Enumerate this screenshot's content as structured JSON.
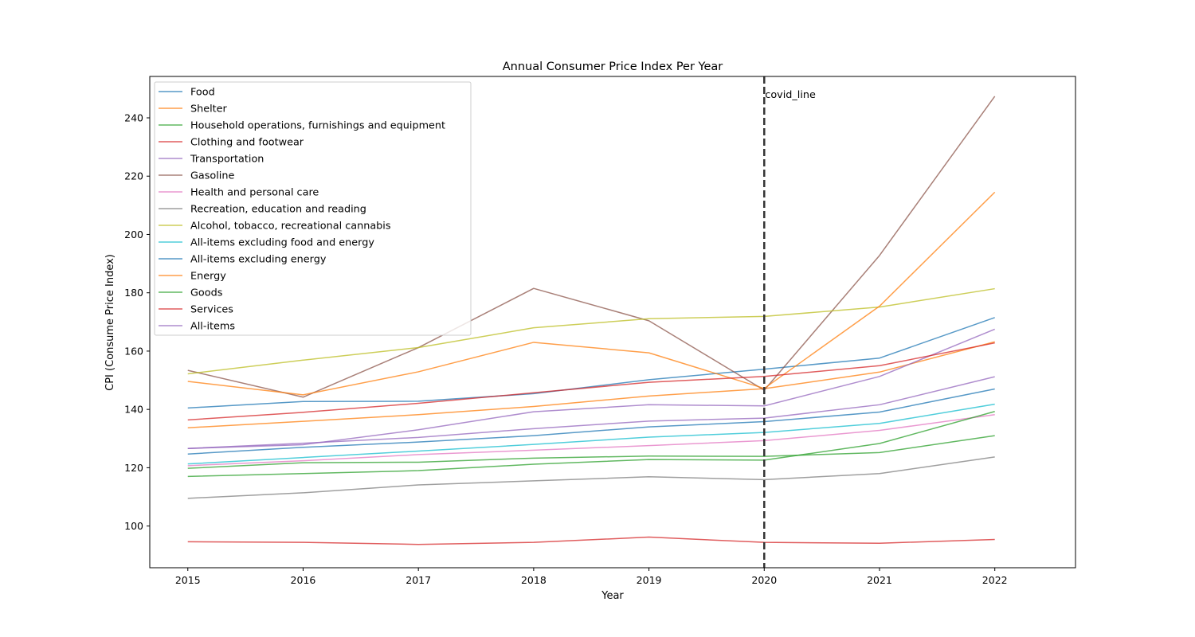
{
  "chart_data": {
    "type": "line",
    "title": "Annual Consumer Price Index Per Year",
    "xlabel": "Year",
    "ylabel": "CPI (Consume Price Index)",
    "x": [
      "2015",
      "2016",
      "2017",
      "2018",
      "2019",
      "2020",
      "2021",
      "2022"
    ],
    "xlim": [
      2014.67,
      2022.7
    ],
    "ylim": [
      85.7,
      254.2
    ],
    "yticks": [
      "100",
      "120",
      "140",
      "160",
      "180",
      "200",
      "220",
      "240"
    ],
    "grid": false,
    "legend_position": "upper left",
    "series": [
      {
        "name": "Food",
        "color": "#1f77b4",
        "values": [
          140.5,
          142.7,
          142.8,
          145.4,
          150.2,
          153.8,
          157.6,
          171.5
        ]
      },
      {
        "name": "Shelter",
        "color": "#ff7f0e",
        "values": [
          133.7,
          135.9,
          138.2,
          141.0,
          144.6,
          147.1,
          152.8,
          163.2
        ]
      },
      {
        "name": "Household operations, furnishings and equipment",
        "color": "#2ca02c",
        "values": [
          119.8,
          121.7,
          121.9,
          123.3,
          124.0,
          123.9,
          125.2,
          131.0
        ]
      },
      {
        "name": "Clothing and footwear",
        "color": "#d62728",
        "values": [
          94.6,
          94.4,
          93.7,
          94.4,
          96.2,
          94.4,
          94.1,
          95.4
        ]
      },
      {
        "name": "Transportation",
        "color": "#9467bd",
        "values": [
          126.6,
          127.9,
          133.0,
          139.2,
          141.6,
          141.2,
          151.3,
          167.5
        ]
      },
      {
        "name": "Gasoline",
        "color": "#8c564b",
        "values": [
          153.4,
          144.2,
          161.2,
          181.5,
          170.4,
          146.6,
          192.8,
          247.4
        ]
      },
      {
        "name": "Health and personal care",
        "color": "#e377c2",
        "values": [
          120.7,
          122.4,
          124.5,
          126.0,
          127.6,
          129.3,
          132.8,
          138.2
        ]
      },
      {
        "name": "Recreation, education and reading",
        "color": "#7f7f7f",
        "values": [
          109.5,
          111.4,
          114.1,
          115.5,
          116.9,
          115.9,
          118.0,
          123.7
        ]
      },
      {
        "name": "Alcohol, tobacco, recreational cannabis",
        "color": "#bcbd22",
        "values": [
          152.2,
          156.9,
          161.2,
          168.0,
          171.1,
          171.9,
          175.1,
          181.4
        ]
      },
      {
        "name": "All-items excluding food and energy",
        "color": "#17becf",
        "values": [
          121.3,
          123.5,
          125.7,
          128.0,
          130.5,
          132.1,
          135.2,
          141.8
        ]
      },
      {
        "name": "All-items excluding energy",
        "color": "#1f77b4",
        "values": [
          124.7,
          127.0,
          128.8,
          131.0,
          134.0,
          135.8,
          139.1,
          147.0
        ]
      },
      {
        "name": "Energy",
        "color": "#ff7f0e",
        "values": [
          149.6,
          145.0,
          152.9,
          163.0,
          159.4,
          147.2,
          175.4,
          214.5
        ]
      },
      {
        "name": "Goods",
        "color": "#2ca02c",
        "values": [
          117.0,
          118.0,
          119.0,
          121.2,
          122.8,
          122.6,
          128.3,
          139.3
        ]
      },
      {
        "name": "Services",
        "color": "#d62728",
        "values": [
          136.4,
          139.0,
          142.1,
          145.7,
          149.3,
          151.3,
          155.0,
          162.8
        ]
      },
      {
        "name": "All-items",
        "color": "#9467bd",
        "values": [
          126.6,
          128.4,
          130.4,
          133.4,
          136.0,
          137.0,
          141.6,
          151.2
        ]
      }
    ],
    "annotations": [
      {
        "type": "vline",
        "x": 2020,
        "style": "dashed",
        "color": "#333333",
        "label": "covid_line"
      }
    ]
  }
}
